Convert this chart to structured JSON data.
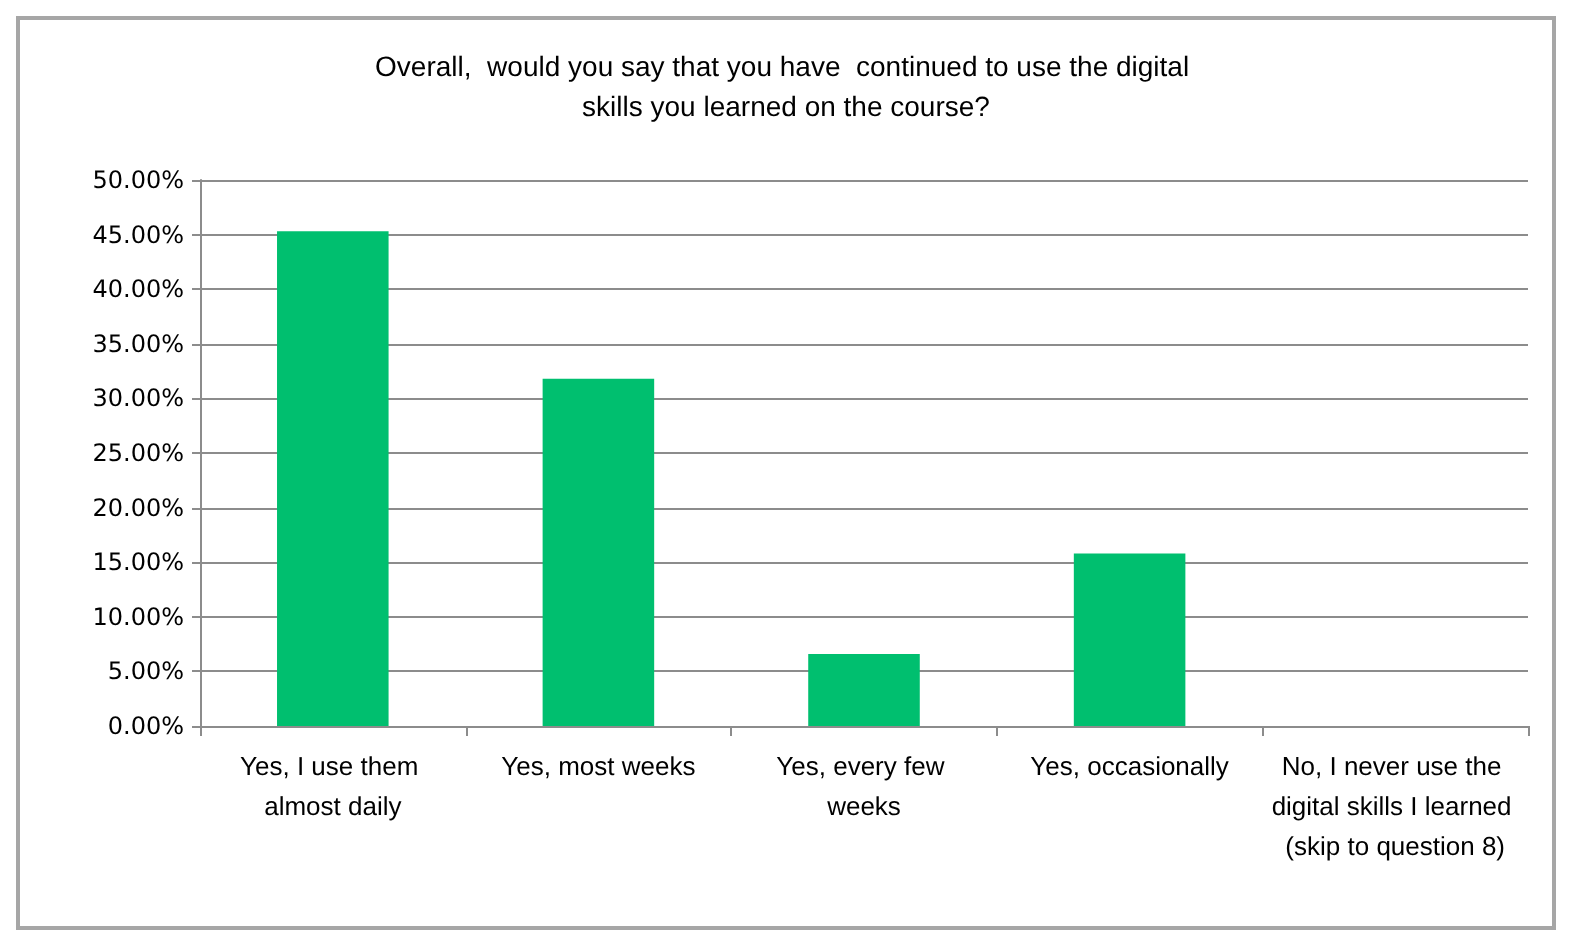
{
  "chart_data": {
    "type": "bar",
    "title": "Overall,  would you say that you have  continued to use the digital skills you learned on the course?",
    "categories": [
      "Yes, I use them almost daily",
      "Yes, most weeks",
      "Yes, every few weeks",
      "Yes, occasionally",
      "No, I never use the digital skills I learned (skip to question 8)"
    ],
    "values": [
      45.3,
      31.8,
      6.6,
      15.8,
      0
    ],
    "color": "#00bf6f",
    "ylim": [
      0,
      50
    ],
    "yticks": [
      {
        "value": 0,
        "label": "0.00%"
      },
      {
        "value": 5,
        "label": "5.00%"
      },
      {
        "value": 10,
        "label": "10.00%"
      },
      {
        "value": 15,
        "label": "15.00%"
      },
      {
        "value": 20,
        "label": "20.00%"
      },
      {
        "value": 25,
        "label": "25.00%"
      },
      {
        "value": 30,
        "label": "30.00%"
      },
      {
        "value": 35,
        "label": "35.00%"
      },
      {
        "value": 40,
        "label": "40.00%"
      },
      {
        "value": 45,
        "label": "45.00%"
      },
      {
        "value": 50,
        "label": "50.00%"
      }
    ],
    "grid": "y"
  }
}
